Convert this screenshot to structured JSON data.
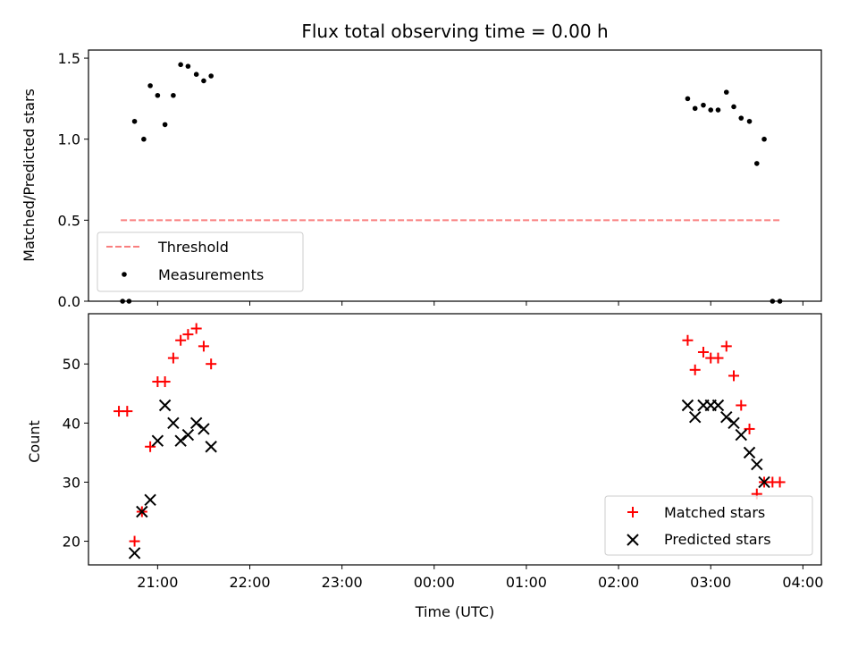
{
  "chart_data": [
    {
      "type": "scatter",
      "title": "Flux total observing time = 0.00 h",
      "xlabel": "",
      "ylabel": "Matched/Predicted stars",
      "xlim_hours": [
        20.25,
        28.2
      ],
      "ylim": [
        0,
        1.55
      ],
      "yticks": [
        "0.0",
        "0.5",
        "1.0",
        "1.5"
      ],
      "threshold": {
        "name": "Threshold",
        "value": 0.5,
        "x_range_hours": [
          20.6,
          27.75
        ],
        "color": "#f97f7f"
      },
      "series": [
        {
          "name": "Measurements",
          "color": "#000000",
          "x_hours": [
            20.62,
            20.69,
            20.75,
            20.85,
            20.92,
            21.0,
            21.08,
            21.17,
            21.25,
            21.33,
            21.42,
            21.5,
            21.58,
            26.75,
            26.83,
            26.92,
            27.0,
            27.08,
            27.17,
            27.25,
            27.33,
            27.42,
            27.5,
            27.58,
            27.67,
            27.75
          ],
          "values": [
            0.0,
            0.0,
            1.11,
            1.0,
            1.33,
            1.27,
            1.09,
            1.27,
            1.46,
            1.45,
            1.4,
            1.36,
            1.39,
            1.25,
            1.19,
            1.21,
            1.18,
            1.18,
            1.29,
            1.2,
            1.13,
            1.11,
            0.85,
            1.0,
            0.0,
            0.0
          ]
        }
      ],
      "legend": "lower-left"
    },
    {
      "type": "scatter",
      "title": "",
      "xlabel": "Time (UTC)",
      "ylabel": "Count",
      "xlim_hours": [
        20.25,
        28.2
      ],
      "xtick_hours": [
        21,
        22,
        23,
        24,
        25,
        26,
        27,
        28
      ],
      "xticks": [
        "21:00",
        "22:00",
        "23:00",
        "00:00",
        "01:00",
        "02:00",
        "03:00",
        "04:00"
      ],
      "ylim": [
        16,
        58.5
      ],
      "yticks": [
        "20",
        "30",
        "40",
        "50"
      ],
      "series": [
        {
          "name": "Matched stars",
          "marker": "+",
          "color": "#ff0000",
          "x_hours": [
            20.58,
            20.67,
            20.75,
            20.83,
            20.92,
            21.0,
            21.08,
            21.17,
            21.25,
            21.33,
            21.42,
            21.5,
            21.58,
            26.75,
            26.83,
            26.92,
            27.0,
            27.08,
            27.17,
            27.25,
            27.33,
            27.42,
            27.5,
            27.58,
            27.67,
            27.75
          ],
          "values": [
            42,
            42,
            20,
            25,
            36,
            47,
            47,
            51,
            54,
            55,
            56,
            53,
            50,
            54,
            49,
            52,
            51,
            51,
            53,
            48,
            43,
            39,
            28,
            30,
            30,
            30
          ]
        },
        {
          "name": "Predicted stars",
          "marker": "x",
          "color": "#000000",
          "x_hours": [
            20.75,
            20.83,
            20.92,
            21.0,
            21.08,
            21.17,
            21.25,
            21.33,
            21.42,
            21.5,
            21.58,
            26.75,
            26.83,
            26.92,
            27.0,
            27.08,
            27.17,
            27.25,
            27.33,
            27.42,
            27.5,
            27.58
          ],
          "values": [
            18,
            25,
            27,
            37,
            43,
            40,
            37,
            38,
            40,
            39,
            36,
            43,
            41,
            43,
            43,
            43,
            41,
            40,
            38,
            35,
            33,
            30
          ]
        }
      ],
      "legend": "lower-right"
    }
  ]
}
